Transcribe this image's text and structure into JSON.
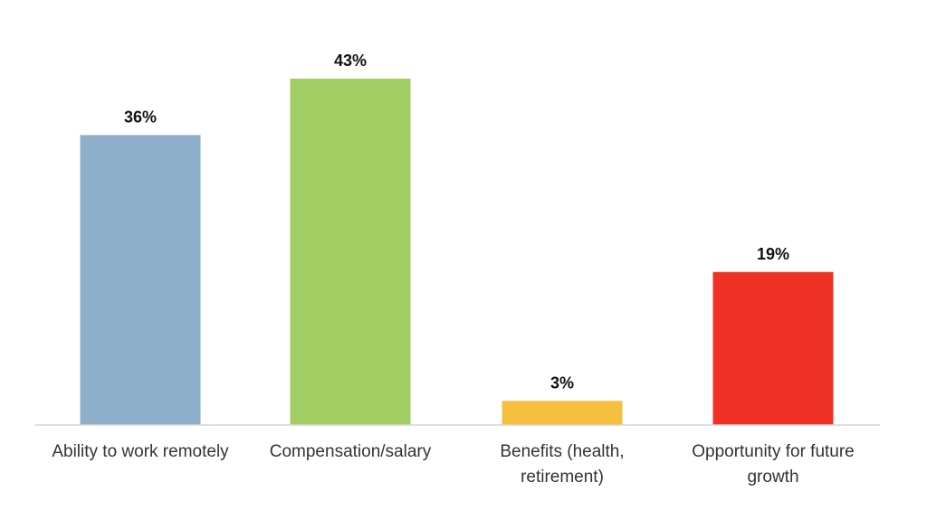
{
  "chart_data": {
    "type": "bar",
    "title": "",
    "xlabel": "",
    "ylabel": "",
    "grid": false,
    "legend": "none",
    "ylim": [
      0,
      45
    ],
    "categories": [
      [
        "Ability to work remotely"
      ],
      [
        "Compensation/salary"
      ],
      [
        "Benefits (health,",
        "retirement)"
      ],
      [
        "Opportunity for future",
        "growth"
      ]
    ],
    "values": [
      36,
      43,
      3,
      19
    ],
    "value_labels": [
      "36%",
      "43%",
      "3%",
      "19%"
    ],
    "colors": [
      "#8DAFC9",
      "#A2CD63",
      "#F5C040",
      "#EE3124"
    ]
  }
}
